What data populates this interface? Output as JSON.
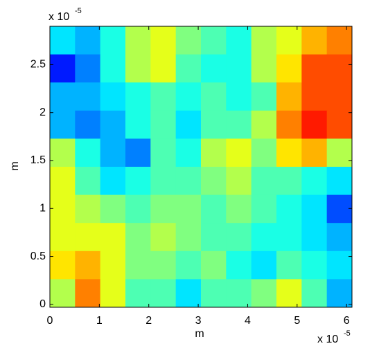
{
  "chart_data": {
    "type": "heatmap",
    "xlabel": "m",
    "ylabel": "m",
    "x_multiplier": {
      "base": "x 10",
      "power": "-5"
    },
    "y_multiplier": {
      "base": "x 10",
      "power": "-5"
    },
    "xlim": [
      0,
      6.11
    ],
    "ylim": [
      -0.03,
      2.9
    ],
    "xticks": [
      0,
      1,
      2,
      3,
      4,
      5,
      6
    ],
    "yticks": [
      0,
      0.5,
      1,
      1.5,
      2,
      2.5
    ],
    "colormap": "jet",
    "clim": [
      0,
      1
    ],
    "z": [
      [
        0.35,
        0.3,
        0.4,
        0.55,
        0.6,
        0.5,
        0.45,
        0.4,
        0.55,
        0.6,
        0.7,
        0.75
      ],
      [
        0.15,
        0.25,
        0.4,
        0.55,
        0.6,
        0.45,
        0.4,
        0.4,
        0.55,
        0.65,
        0.8,
        0.8
      ],
      [
        0.3,
        0.3,
        0.35,
        0.4,
        0.45,
        0.4,
        0.45,
        0.4,
        0.45,
        0.7,
        0.8,
        0.8
      ],
      [
        0.3,
        0.25,
        0.3,
        0.4,
        0.45,
        0.35,
        0.45,
        0.45,
        0.55,
        0.75,
        0.85,
        0.8
      ],
      [
        0.55,
        0.4,
        0.3,
        0.25,
        0.45,
        0.4,
        0.55,
        0.6,
        0.5,
        0.65,
        0.7,
        0.55
      ],
      [
        0.6,
        0.45,
        0.35,
        0.4,
        0.45,
        0.45,
        0.5,
        0.55,
        0.45,
        0.45,
        0.4,
        0.35
      ],
      [
        0.6,
        0.55,
        0.5,
        0.45,
        0.5,
        0.5,
        0.45,
        0.5,
        0.45,
        0.4,
        0.35,
        0.2
      ],
      [
        0.6,
        0.6,
        0.6,
        0.5,
        0.55,
        0.5,
        0.45,
        0.45,
        0.4,
        0.4,
        0.35,
        0.3
      ],
      [
        0.65,
        0.7,
        0.6,
        0.5,
        0.5,
        0.45,
        0.5,
        0.4,
        0.35,
        0.45,
        0.4,
        0.35
      ],
      [
        0.55,
        0.75,
        0.6,
        0.45,
        0.45,
        0.35,
        0.45,
        0.45,
        0.5,
        0.6,
        0.45,
        0.3
      ]
    ]
  }
}
